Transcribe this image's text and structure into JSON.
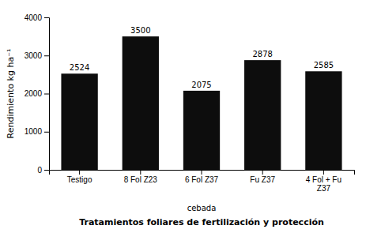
{
  "chart_data": {
    "type": "bar",
    "categories": [
      "Testigo",
      "8 Fol Z23",
      "6 Fol Z37",
      "Fu Z37",
      "4 Fol + Fu\nZ37"
    ],
    "values": [
      2524,
      3500,
      2075,
      2878,
      2585
    ],
    "color": "#0d0d0d",
    "ylim": [
      0,
      4000
    ],
    "yticks": [
      0,
      1000,
      2000,
      3000,
      4000
    ],
    "ylabel": "Rendimiento kg ha⁻¹",
    "subtitle": "cebada",
    "xlabel": "Tratamientos foliares de fertilización y protección",
    "data_labels": true,
    "grid": false
  }
}
